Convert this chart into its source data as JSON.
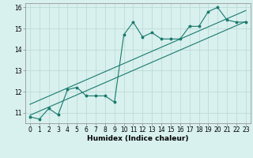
{
  "title": "",
  "xlabel": "Humidex (Indice chaleur)",
  "ylabel": "",
  "bg_color": "#d8f0ee",
  "line_color": "#1a7a6e",
  "grid_color": "#b8d8d4",
  "x_data": [
    0,
    1,
    2,
    3,
    4,
    5,
    6,
    7,
    8,
    9,
    10,
    11,
    12,
    13,
    14,
    15,
    16,
    17,
    18,
    19,
    20,
    21,
    22,
    23
  ],
  "y_data": [
    10.8,
    10.7,
    11.2,
    10.9,
    12.1,
    12.2,
    11.8,
    11.8,
    11.8,
    11.5,
    14.7,
    15.3,
    14.6,
    14.8,
    14.5,
    14.5,
    14.5,
    15.1,
    15.1,
    15.8,
    16.0,
    15.4,
    15.3,
    15.3
  ],
  "reg_line1_x": [
    0,
    23
  ],
  "reg_line1_y": [
    10.88,
    15.33
  ],
  "reg_line2_x": [
    0,
    23
  ],
  "reg_line2_y": [
    11.4,
    15.85
  ],
  "xlim": [
    -0.5,
    23.5
  ],
  "ylim": [
    10.5,
    16.2
  ],
  "yticks": [
    11,
    12,
    13,
    14,
    15,
    16
  ],
  "xticks": [
    0,
    1,
    2,
    3,
    4,
    5,
    6,
    7,
    8,
    9,
    10,
    11,
    12,
    13,
    14,
    15,
    16,
    17,
    18,
    19,
    20,
    21,
    22,
    23
  ],
  "xlabel_fontsize": 6.5,
  "tick_fontsize": 5.5,
  "marker_size": 2.5,
  "line_width": 0.8
}
